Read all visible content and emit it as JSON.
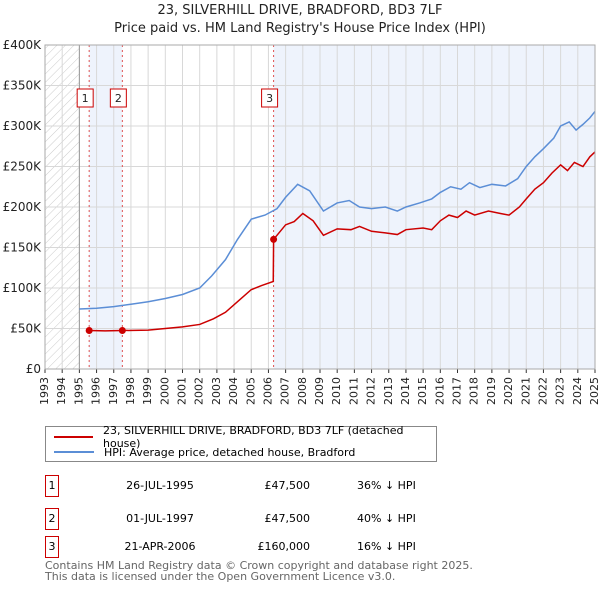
{
  "chart_data": {
    "type": "line",
    "title": "23, SILVERHILL DRIVE, BRADFORD, BD3 7LF",
    "subtitle": "Price paid vs. HM Land Registry's House Price Index (HPI)",
    "xlim": [
      1993,
      2025
    ],
    "ylim": [
      0,
      400000
    ],
    "x_ticks": [
      "1993",
      "1994",
      "1995",
      "1996",
      "1997",
      "1998",
      "1999",
      "2000",
      "2001",
      "2002",
      "2003",
      "2004",
      "2005",
      "2006",
      "2007",
      "2008",
      "2009",
      "2010",
      "2011",
      "2012",
      "2013",
      "2014",
      "2015",
      "2016",
      "2017",
      "2018",
      "2019",
      "2020",
      "2021",
      "2022",
      "2023",
      "2024",
      "2025"
    ],
    "y_ticks": [
      {
        "v": 0,
        "l": "£0"
      },
      {
        "v": 50000,
        "l": "£50K"
      },
      {
        "v": 100000,
        "l": "£100K"
      },
      {
        "v": 150000,
        "l": "£150K"
      },
      {
        "v": 200000,
        "l": "£200K"
      },
      {
        "v": 250000,
        "l": "£250K"
      },
      {
        "v": 300000,
        "l": "£300K"
      },
      {
        "v": 350000,
        "l": "£350K"
      },
      {
        "v": 400000,
        "l": "£400K"
      }
    ],
    "series": [
      {
        "name": "23, SILVERHILL DRIVE, BRADFORD, BD3 7LF (detached house)",
        "color": "#cc0000",
        "points": [
          [
            1995.57,
            47500
          ],
          [
            1996.5,
            47000
          ],
          [
            1997.5,
            47500
          ],
          [
            1999,
            48000
          ],
          [
            2000,
            50000
          ],
          [
            2001,
            52000
          ],
          [
            2002,
            55000
          ],
          [
            2002.8,
            62000
          ],
          [
            2003.5,
            70000
          ],
          [
            2004.3,
            85000
          ],
          [
            2005,
            98000
          ],
          [
            2005.6,
            103000
          ],
          [
            2006.28,
            108000
          ],
          [
            2006.3,
            160000
          ],
          [
            2007,
            178000
          ],
          [
            2007.5,
            182000
          ],
          [
            2008,
            192000
          ],
          [
            2008.6,
            183000
          ],
          [
            2009.2,
            165000
          ],
          [
            2010,
            173000
          ],
          [
            2010.8,
            172000
          ],
          [
            2011.3,
            176000
          ],
          [
            2012,
            170000
          ],
          [
            2012.8,
            168000
          ],
          [
            2013.5,
            166000
          ],
          [
            2014,
            172000
          ],
          [
            2015,
            174000
          ],
          [
            2015.5,
            172000
          ],
          [
            2016,
            183000
          ],
          [
            2016.5,
            190000
          ],
          [
            2017,
            187000
          ],
          [
            2017.5,
            195000
          ],
          [
            2018,
            190000
          ],
          [
            2018.8,
            195000
          ],
          [
            2019.5,
            192000
          ],
          [
            2020,
            190000
          ],
          [
            2020.6,
            200000
          ],
          [
            2021,
            210000
          ],
          [
            2021.5,
            222000
          ],
          [
            2022,
            230000
          ],
          [
            2022.5,
            242000
          ],
          [
            2023,
            252000
          ],
          [
            2023.4,
            245000
          ],
          [
            2023.8,
            255000
          ],
          [
            2024.3,
            250000
          ],
          [
            2024.7,
            262000
          ],
          [
            2025,
            268000
          ]
        ]
      },
      {
        "name": "HPI: Average price, detached house, Bradford",
        "color": "#5b8ed6",
        "points": [
          [
            1995,
            74000
          ],
          [
            1996,
            75000
          ],
          [
            1997,
            77000
          ],
          [
            1998,
            80000
          ],
          [
            1999,
            83000
          ],
          [
            2000,
            87000
          ],
          [
            2001,
            92000
          ],
          [
            2002,
            100000
          ],
          [
            2002.7,
            115000
          ],
          [
            2003.5,
            135000
          ],
          [
            2004.2,
            160000
          ],
          [
            2005,
            185000
          ],
          [
            2005.8,
            190000
          ],
          [
            2006.5,
            198000
          ],
          [
            2007,
            212000
          ],
          [
            2007.7,
            228000
          ],
          [
            2008.4,
            220000
          ],
          [
            2009.2,
            195000
          ],
          [
            2010,
            205000
          ],
          [
            2010.7,
            208000
          ],
          [
            2011.3,
            200000
          ],
          [
            2012,
            198000
          ],
          [
            2012.8,
            200000
          ],
          [
            2013.5,
            195000
          ],
          [
            2014,
            200000
          ],
          [
            2014.8,
            205000
          ],
          [
            2015.5,
            210000
          ],
          [
            2016,
            218000
          ],
          [
            2016.6,
            225000
          ],
          [
            2017.2,
            222000
          ],
          [
            2017.7,
            230000
          ],
          [
            2018.3,
            224000
          ],
          [
            2019,
            228000
          ],
          [
            2019.8,
            226000
          ],
          [
            2020.5,
            235000
          ],
          [
            2021,
            250000
          ],
          [
            2021.5,
            262000
          ],
          [
            2022,
            272000
          ],
          [
            2022.6,
            285000
          ],
          [
            2023,
            300000
          ],
          [
            2023.5,
            305000
          ],
          [
            2023.9,
            295000
          ],
          [
            2024.3,
            302000
          ],
          [
            2024.7,
            310000
          ],
          [
            2025,
            318000
          ]
        ]
      }
    ],
    "sales": [
      {
        "label": "1",
        "x": 1995.57,
        "y": 47500
      },
      {
        "label": "2",
        "x": 1997.5,
        "y": 47500
      },
      {
        "label": "3",
        "x": 2006.3,
        "y": 160000
      }
    ]
  },
  "legend": {
    "red": "23, SILVERHILL DRIVE, BRADFORD, BD3 7LF (detached house)",
    "blue": "HPI: Average price, detached house, Bradford"
  },
  "table": [
    {
      "n": "1",
      "date": "26-JUL-1995",
      "price": "£47,500",
      "hpi": "36% ↓ HPI"
    },
    {
      "n": "2",
      "date": "01-JUL-1997",
      "price": "£47,500",
      "hpi": "40% ↓ HPI"
    },
    {
      "n": "3",
      "date": "21-APR-2006",
      "price": "£160,000",
      "hpi": "16% ↓ HPI"
    }
  ],
  "footer": [
    "Contains HM Land Registry data © Crown copyright and database right 2025.",
    "This data is licensed under the Open Government Licence v3.0."
  ]
}
